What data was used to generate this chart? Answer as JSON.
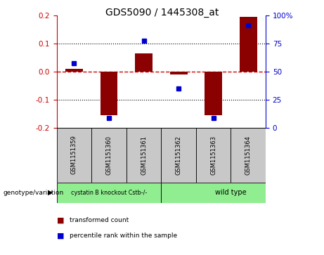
{
  "title": "GDS5090 / 1445308_at",
  "samples": [
    "GSM1151359",
    "GSM1151360",
    "GSM1151361",
    "GSM1151362",
    "GSM1151363",
    "GSM1151364"
  ],
  "bar_values": [
    0.01,
    -0.155,
    0.065,
    -0.01,
    -0.155,
    0.195
  ],
  "percentile_values": [
    0.03,
    -0.165,
    0.11,
    -0.06,
    -0.165,
    0.165
  ],
  "ylim": [
    -0.2,
    0.2
  ],
  "yticks_left": [
    -0.2,
    -0.1,
    0.0,
    0.1,
    0.2
  ],
  "yticks_right_labels": [
    "0",
    "25",
    "50",
    "75",
    "100%"
  ],
  "yticks_right_pos": [
    -0.2,
    -0.1,
    0.0,
    0.1,
    0.2
  ],
  "group1_label": "cystatin B knockout Cstb-/-",
  "group2_label": "wild type",
  "group_color": "#90EE90",
  "sample_box_color": "#C8C8C8",
  "bar_color": "#8B0000",
  "dot_color": "#0000CD",
  "zero_line_color": "#CC0000",
  "dotted_line_color": "#000000",
  "bg_color": "#FFFFFF",
  "title_fontsize": 10,
  "tick_fontsize": 7.5,
  "label_fontsize": 7,
  "bar_width": 0.5
}
